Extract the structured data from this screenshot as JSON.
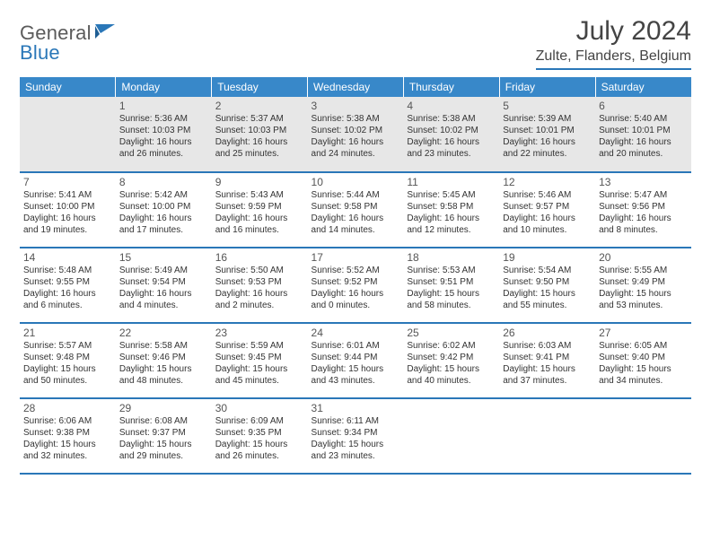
{
  "logo": {
    "text1": "General",
    "text2": "Blue"
  },
  "title": "July 2024",
  "location": "Zulte, Flanders, Belgium",
  "day_headers": [
    "Sunday",
    "Monday",
    "Tuesday",
    "Wednesday",
    "Thursday",
    "Friday",
    "Saturday"
  ],
  "colors": {
    "header_bg": "#3888c9",
    "divider": "#2a77b8",
    "gray_row": "#e7e7e7",
    "text": "#333333"
  },
  "weeks": [
    {
      "gray": true,
      "cells": [
        {
          "empty": true
        },
        {
          "num": "1",
          "sunrise": "Sunrise: 5:36 AM",
          "sunset": "Sunset: 10:03 PM",
          "day1": "Daylight: 16 hours",
          "day2": "and 26 minutes."
        },
        {
          "num": "2",
          "sunrise": "Sunrise: 5:37 AM",
          "sunset": "Sunset: 10:03 PM",
          "day1": "Daylight: 16 hours",
          "day2": "and 25 minutes."
        },
        {
          "num": "3",
          "sunrise": "Sunrise: 5:38 AM",
          "sunset": "Sunset: 10:02 PM",
          "day1": "Daylight: 16 hours",
          "day2": "and 24 minutes."
        },
        {
          "num": "4",
          "sunrise": "Sunrise: 5:38 AM",
          "sunset": "Sunset: 10:02 PM",
          "day1": "Daylight: 16 hours",
          "day2": "and 23 minutes."
        },
        {
          "num": "5",
          "sunrise": "Sunrise: 5:39 AM",
          "sunset": "Sunset: 10:01 PM",
          "day1": "Daylight: 16 hours",
          "day2": "and 22 minutes."
        },
        {
          "num": "6",
          "sunrise": "Sunrise: 5:40 AM",
          "sunset": "Sunset: 10:01 PM",
          "day1": "Daylight: 16 hours",
          "day2": "and 20 minutes."
        }
      ]
    },
    {
      "gray": false,
      "cells": [
        {
          "num": "7",
          "sunrise": "Sunrise: 5:41 AM",
          "sunset": "Sunset: 10:00 PM",
          "day1": "Daylight: 16 hours",
          "day2": "and 19 minutes."
        },
        {
          "num": "8",
          "sunrise": "Sunrise: 5:42 AM",
          "sunset": "Sunset: 10:00 PM",
          "day1": "Daylight: 16 hours",
          "day2": "and 17 minutes."
        },
        {
          "num": "9",
          "sunrise": "Sunrise: 5:43 AM",
          "sunset": "Sunset: 9:59 PM",
          "day1": "Daylight: 16 hours",
          "day2": "and 16 minutes."
        },
        {
          "num": "10",
          "sunrise": "Sunrise: 5:44 AM",
          "sunset": "Sunset: 9:58 PM",
          "day1": "Daylight: 16 hours",
          "day2": "and 14 minutes."
        },
        {
          "num": "11",
          "sunrise": "Sunrise: 5:45 AM",
          "sunset": "Sunset: 9:58 PM",
          "day1": "Daylight: 16 hours",
          "day2": "and 12 minutes."
        },
        {
          "num": "12",
          "sunrise": "Sunrise: 5:46 AM",
          "sunset": "Sunset: 9:57 PM",
          "day1": "Daylight: 16 hours",
          "day2": "and 10 minutes."
        },
        {
          "num": "13",
          "sunrise": "Sunrise: 5:47 AM",
          "sunset": "Sunset: 9:56 PM",
          "day1": "Daylight: 16 hours",
          "day2": "and 8 minutes."
        }
      ]
    },
    {
      "gray": false,
      "cells": [
        {
          "num": "14",
          "sunrise": "Sunrise: 5:48 AM",
          "sunset": "Sunset: 9:55 PM",
          "day1": "Daylight: 16 hours",
          "day2": "and 6 minutes."
        },
        {
          "num": "15",
          "sunrise": "Sunrise: 5:49 AM",
          "sunset": "Sunset: 9:54 PM",
          "day1": "Daylight: 16 hours",
          "day2": "and 4 minutes."
        },
        {
          "num": "16",
          "sunrise": "Sunrise: 5:50 AM",
          "sunset": "Sunset: 9:53 PM",
          "day1": "Daylight: 16 hours",
          "day2": "and 2 minutes."
        },
        {
          "num": "17",
          "sunrise": "Sunrise: 5:52 AM",
          "sunset": "Sunset: 9:52 PM",
          "day1": "Daylight: 16 hours",
          "day2": "and 0 minutes."
        },
        {
          "num": "18",
          "sunrise": "Sunrise: 5:53 AM",
          "sunset": "Sunset: 9:51 PM",
          "day1": "Daylight: 15 hours",
          "day2": "and 58 minutes."
        },
        {
          "num": "19",
          "sunrise": "Sunrise: 5:54 AM",
          "sunset": "Sunset: 9:50 PM",
          "day1": "Daylight: 15 hours",
          "day2": "and 55 minutes."
        },
        {
          "num": "20",
          "sunrise": "Sunrise: 5:55 AM",
          "sunset": "Sunset: 9:49 PM",
          "day1": "Daylight: 15 hours",
          "day2": "and 53 minutes."
        }
      ]
    },
    {
      "gray": false,
      "cells": [
        {
          "num": "21",
          "sunrise": "Sunrise: 5:57 AM",
          "sunset": "Sunset: 9:48 PM",
          "day1": "Daylight: 15 hours",
          "day2": "and 50 minutes."
        },
        {
          "num": "22",
          "sunrise": "Sunrise: 5:58 AM",
          "sunset": "Sunset: 9:46 PM",
          "day1": "Daylight: 15 hours",
          "day2": "and 48 minutes."
        },
        {
          "num": "23",
          "sunrise": "Sunrise: 5:59 AM",
          "sunset": "Sunset: 9:45 PM",
          "day1": "Daylight: 15 hours",
          "day2": "and 45 minutes."
        },
        {
          "num": "24",
          "sunrise": "Sunrise: 6:01 AM",
          "sunset": "Sunset: 9:44 PM",
          "day1": "Daylight: 15 hours",
          "day2": "and 43 minutes."
        },
        {
          "num": "25",
          "sunrise": "Sunrise: 6:02 AM",
          "sunset": "Sunset: 9:42 PM",
          "day1": "Daylight: 15 hours",
          "day2": "and 40 minutes."
        },
        {
          "num": "26",
          "sunrise": "Sunrise: 6:03 AM",
          "sunset": "Sunset: 9:41 PM",
          "day1": "Daylight: 15 hours",
          "day2": "and 37 minutes."
        },
        {
          "num": "27",
          "sunrise": "Sunrise: 6:05 AM",
          "sunset": "Sunset: 9:40 PM",
          "day1": "Daylight: 15 hours",
          "day2": "and 34 minutes."
        }
      ]
    },
    {
      "gray": false,
      "cells": [
        {
          "num": "28",
          "sunrise": "Sunrise: 6:06 AM",
          "sunset": "Sunset: 9:38 PM",
          "day1": "Daylight: 15 hours",
          "day2": "and 32 minutes."
        },
        {
          "num": "29",
          "sunrise": "Sunrise: 6:08 AM",
          "sunset": "Sunset: 9:37 PM",
          "day1": "Daylight: 15 hours",
          "day2": "and 29 minutes."
        },
        {
          "num": "30",
          "sunrise": "Sunrise: 6:09 AM",
          "sunset": "Sunset: 9:35 PM",
          "day1": "Daylight: 15 hours",
          "day2": "and 26 minutes."
        },
        {
          "num": "31",
          "sunrise": "Sunrise: 6:11 AM",
          "sunset": "Sunset: 9:34 PM",
          "day1": "Daylight: 15 hours",
          "day2": "and 23 minutes."
        },
        {
          "empty": true
        },
        {
          "empty": true
        },
        {
          "empty": true
        }
      ]
    }
  ]
}
